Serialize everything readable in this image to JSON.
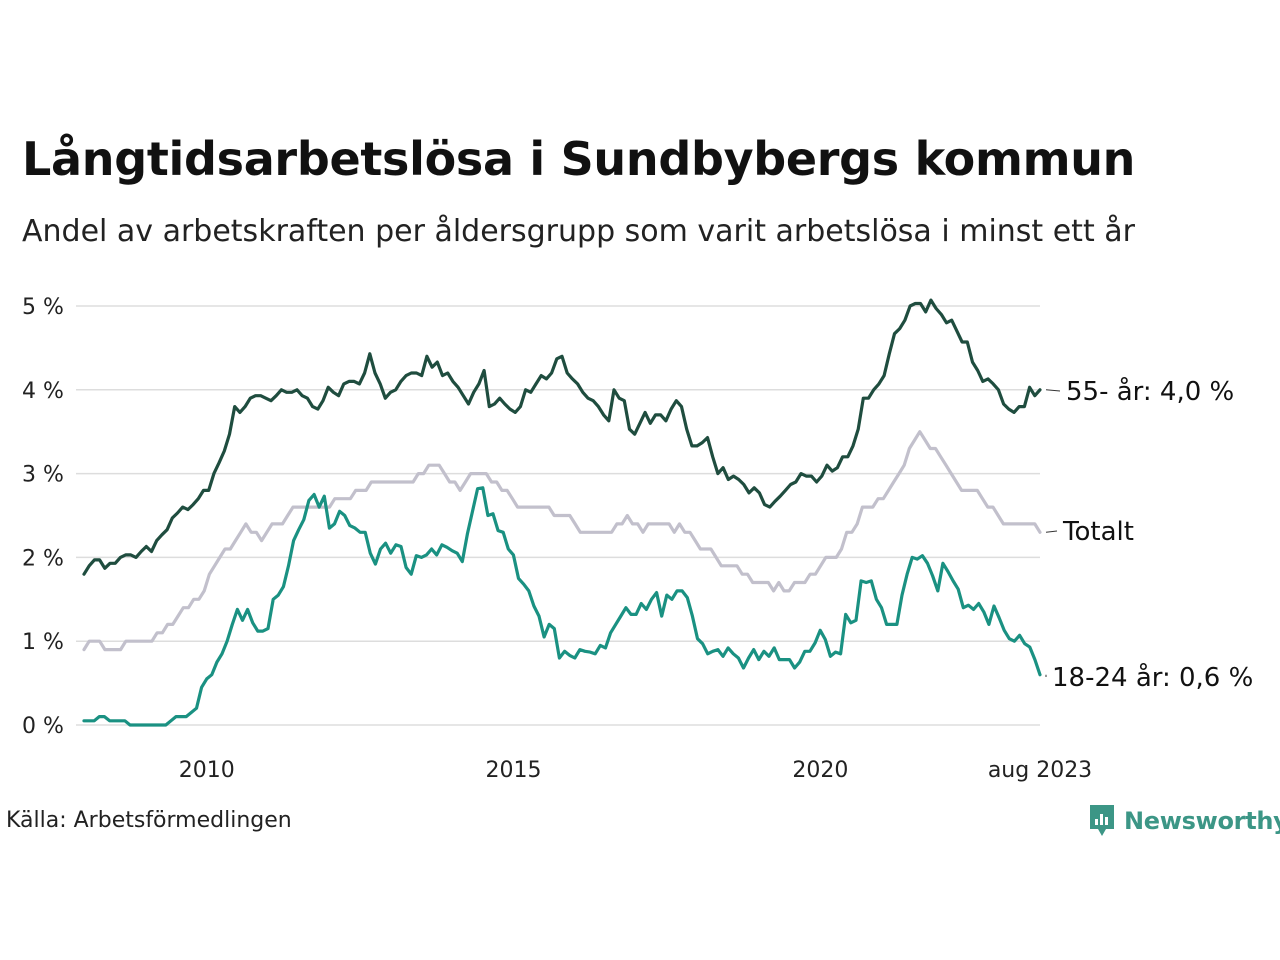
{
  "title": "Långtidsarbetslösa i Sundbybergs kommun",
  "subtitle": "Andel av arbetskraften per åldersgrupp som varit arbetslösa i minst ett år",
  "source": "Källa: Arbetsförmedlingen",
  "brand": "Newsworthy",
  "colors": {
    "series_55": "#1f4d3f",
    "series_total": "#c2c0cc",
    "series_18_24": "#1a9182",
    "grid": "#dddddd",
    "brand": "#3c9686"
  },
  "chart_data": {
    "type": "line",
    "x_start": "2008-01",
    "x_step": "month",
    "x_end_label": "aug 2023",
    "xticks": [
      {
        "label": "2010",
        "year": 2010
      },
      {
        "label": "2015",
        "year": 2015
      },
      {
        "label": "2020",
        "year": 2020
      },
      {
        "label": "aug 2023",
        "year": 2023.58
      }
    ],
    "yticks": [
      "0 %",
      "1 %",
      "2 %",
      "3 %",
      "4 %",
      "5 %"
    ],
    "ylim": [
      0,
      5
    ],
    "grid": true,
    "series": [
      {
        "key": "55",
        "name": "55- år",
        "end_label": "55- år: 4,0 %",
        "color": "#1f4d3f",
        "values": [
          1.8,
          1.9,
          1.97,
          1.97,
          1.87,
          1.93,
          1.93,
          2.0,
          2.03,
          2.03,
          2.0,
          2.07,
          2.13,
          2.07,
          2.2,
          2.27,
          2.33,
          2.47,
          2.53,
          2.6,
          2.57,
          2.63,
          2.7,
          2.8,
          2.8,
          3.0,
          3.13,
          3.27,
          3.47,
          3.8,
          3.73,
          3.8,
          3.9,
          3.93,
          3.93,
          3.9,
          3.87,
          3.93,
          4.0,
          3.97,
          3.97,
          4.0,
          3.93,
          3.9,
          3.8,
          3.77,
          3.87,
          4.03,
          3.97,
          3.93,
          4.07,
          4.1,
          4.1,
          4.07,
          4.2,
          4.43,
          4.2,
          4.07,
          3.9,
          3.97,
          4.0,
          4.1,
          4.17,
          4.2,
          4.2,
          4.17,
          4.4,
          4.27,
          4.33,
          4.17,
          4.2,
          4.1,
          4.03,
          3.93,
          3.83,
          3.97,
          4.07,
          4.23,
          3.8,
          3.83,
          3.9,
          3.83,
          3.77,
          3.73,
          3.8,
          4.0,
          3.97,
          4.07,
          4.17,
          4.13,
          4.2,
          4.37,
          4.4,
          4.2,
          4.13,
          4.07,
          3.97,
          3.9,
          3.87,
          3.8,
          3.7,
          3.63,
          4.0,
          3.9,
          3.87,
          3.53,
          3.47,
          3.6,
          3.73,
          3.6,
          3.7,
          3.7,
          3.63,
          3.77,
          3.87,
          3.8,
          3.53,
          3.33,
          3.33,
          3.37,
          3.43,
          3.2,
          3.0,
          3.07,
          2.93,
          2.97,
          2.93,
          2.87,
          2.77,
          2.83,
          2.77,
          2.63,
          2.6,
          2.67,
          2.73,
          2.8,
          2.87,
          2.9,
          3.0,
          2.97,
          2.97,
          2.9,
          2.97,
          3.1,
          3.03,
          3.07,
          3.2,
          3.2,
          3.33,
          3.53,
          3.9,
          3.9,
          4.0,
          4.07,
          4.17,
          4.43,
          4.67,
          4.73,
          4.83,
          5.0,
          5.03,
          5.03,
          4.93,
          5.07,
          4.97,
          4.9,
          4.8,
          4.83,
          4.7,
          4.57,
          4.57,
          4.33,
          4.23,
          4.1,
          4.13,
          4.07,
          4.0,
          3.83,
          3.77,
          3.73,
          3.8,
          3.8,
          4.03,
          3.93,
          4.0
        ]
      },
      {
        "key": "total",
        "name": "Totalt",
        "end_label": "Totalt",
        "color": "#c2c0cc",
        "values": [
          0.9,
          1.0,
          1.0,
          1.0,
          0.9,
          0.9,
          0.9,
          0.9,
          1.0,
          1.0,
          1.0,
          1.0,
          1.0,
          1.0,
          1.1,
          1.1,
          1.2,
          1.2,
          1.3,
          1.4,
          1.4,
          1.5,
          1.5,
          1.6,
          1.8,
          1.9,
          2.0,
          2.1,
          2.1,
          2.2,
          2.3,
          2.4,
          2.3,
          2.3,
          2.2,
          2.3,
          2.4,
          2.4,
          2.4,
          2.5,
          2.6,
          2.6,
          2.6,
          2.6,
          2.6,
          2.6,
          2.6,
          2.6,
          2.7,
          2.7,
          2.7,
          2.7,
          2.8,
          2.8,
          2.8,
          2.9,
          2.9,
          2.9,
          2.9,
          2.9,
          2.9,
          2.9,
          2.9,
          2.9,
          3.0,
          3.0,
          3.1,
          3.1,
          3.1,
          3.0,
          2.9,
          2.9,
          2.8,
          2.9,
          3.0,
          3.0,
          3.0,
          3.0,
          2.9,
          2.9,
          2.8,
          2.8,
          2.7,
          2.6,
          2.6,
          2.6,
          2.6,
          2.6,
          2.6,
          2.6,
          2.5,
          2.5,
          2.5,
          2.5,
          2.4,
          2.3,
          2.3,
          2.3,
          2.3,
          2.3,
          2.3,
          2.3,
          2.4,
          2.4,
          2.5,
          2.4,
          2.4,
          2.3,
          2.4,
          2.4,
          2.4,
          2.4,
          2.4,
          2.3,
          2.4,
          2.3,
          2.3,
          2.2,
          2.1,
          2.1,
          2.1,
          2.0,
          1.9,
          1.9,
          1.9,
          1.9,
          1.8,
          1.8,
          1.7,
          1.7,
          1.7,
          1.7,
          1.6,
          1.7,
          1.6,
          1.6,
          1.7,
          1.7,
          1.7,
          1.8,
          1.8,
          1.9,
          2.0,
          2.0,
          2.0,
          2.1,
          2.3,
          2.3,
          2.4,
          2.6,
          2.6,
          2.6,
          2.7,
          2.7,
          2.8,
          2.9,
          3.0,
          3.1,
          3.3,
          3.4,
          3.5,
          3.4,
          3.3,
          3.3,
          3.2,
          3.1,
          3.0,
          2.9,
          2.8,
          2.8,
          2.8,
          2.8,
          2.7,
          2.6,
          2.6,
          2.5,
          2.4,
          2.4,
          2.4,
          2.4,
          2.4,
          2.4,
          2.4,
          2.3
        ]
      },
      {
        "key": "18_24",
        "name": "18-24 år",
        "end_label": "18-24 år: 0,6 %",
        "color": "#1a9182",
        "values": [
          0.05,
          0.05,
          0.05,
          0.1,
          0.1,
          0.05,
          0.05,
          0.05,
          0.05,
          0.0,
          0.0,
          0.0,
          0.0,
          0.0,
          0.0,
          0.0,
          0.0,
          0.05,
          0.1,
          0.1,
          0.1,
          0.15,
          0.2,
          0.45,
          0.55,
          0.6,
          0.75,
          0.85,
          1.0,
          1.2,
          1.38,
          1.25,
          1.38,
          1.22,
          1.12,
          1.12,
          1.15,
          1.5,
          1.55,
          1.65,
          1.9,
          2.2,
          2.33,
          2.45,
          2.68,
          2.75,
          2.6,
          2.73,
          2.35,
          2.4,
          2.55,
          2.5,
          2.38,
          2.35,
          2.3,
          2.3,
          2.05,
          1.92,
          2.1,
          2.17,
          2.05,
          2.15,
          2.13,
          1.88,
          1.8,
          2.02,
          2.0,
          2.03,
          2.1,
          2.03,
          2.15,
          2.12,
          2.08,
          2.05,
          1.95,
          2.28,
          2.55,
          2.82,
          2.83,
          2.5,
          2.52,
          2.32,
          2.3,
          2.1,
          2.03,
          1.75,
          1.68,
          1.6,
          1.42,
          1.3,
          1.05,
          1.2,
          1.15,
          0.8,
          0.88,
          0.83,
          0.8,
          0.9,
          0.88,
          0.87,
          0.85,
          0.95,
          0.92,
          1.1,
          1.2,
          1.3,
          1.4,
          1.32,
          1.32,
          1.45,
          1.38,
          1.5,
          1.58,
          1.3,
          1.55,
          1.5,
          1.6,
          1.6,
          1.52,
          1.3,
          1.03,
          0.97,
          0.85,
          0.88,
          0.9,
          0.82,
          0.92,
          0.85,
          0.8,
          0.68,
          0.8,
          0.9,
          0.78,
          0.88,
          0.82,
          0.92,
          0.78,
          0.78,
          0.78,
          0.68,
          0.75,
          0.88,
          0.88,
          0.98,
          1.13,
          1.02,
          0.82,
          0.87,
          0.85,
          1.32,
          1.22,
          1.25,
          1.72,
          1.7,
          1.72,
          1.5,
          1.4,
          1.2,
          1.2,
          1.2,
          1.55,
          1.8,
          2.0,
          1.98,
          2.02,
          1.93,
          1.78,
          1.6,
          1.93,
          1.83,
          1.72,
          1.62,
          1.4,
          1.43,
          1.38,
          1.45,
          1.35,
          1.2,
          1.42,
          1.28,
          1.13,
          1.03,
          1.0,
          1.07,
          0.97,
          0.93,
          0.78,
          0.6
        ]
      }
    ]
  }
}
